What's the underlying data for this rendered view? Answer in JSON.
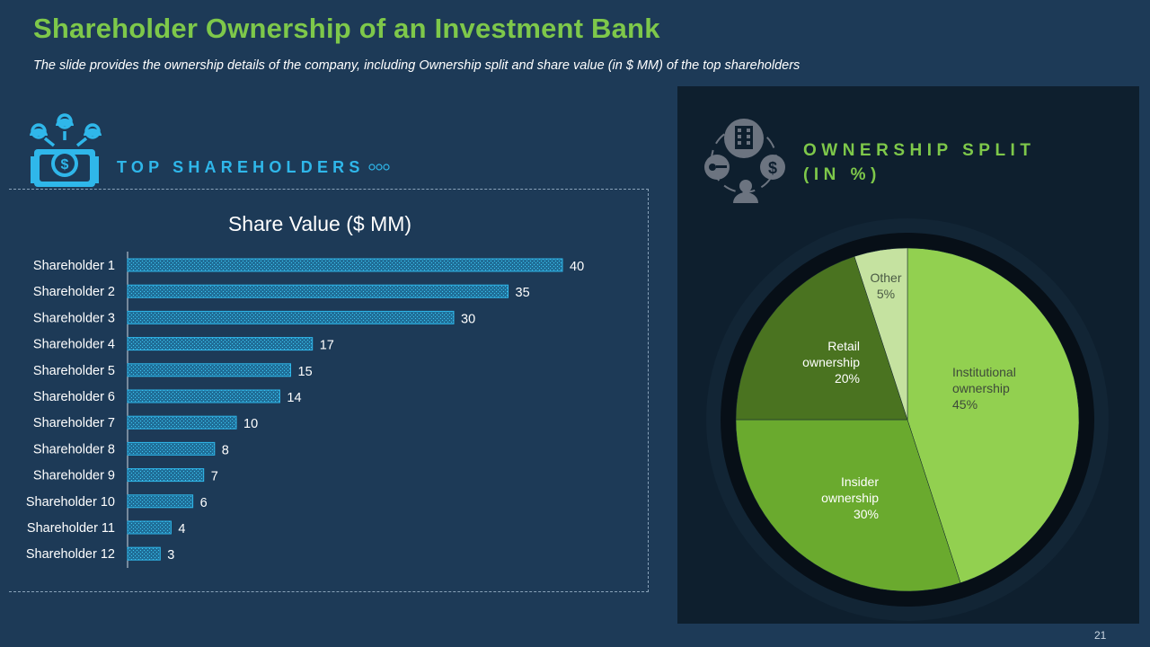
{
  "slide": {
    "title": "Shareholder Ownership of an Investment Bank",
    "subtitle": "The slide provides the ownership details of the company, including Ownership split and share value (in $ MM) of the top shareholders",
    "page_number": "21"
  },
  "left_section": {
    "heading": "TOP SHAREHOLDERS",
    "icon": "people-money-icon",
    "decoration": "three-dots-icon"
  },
  "right_section": {
    "heading_line1": "OWNERSHIP SPLIT",
    "heading_line2": "(IN %)",
    "icon": "building-network-icon"
  },
  "colors": {
    "background": "#1d3a57",
    "title_green": "#7ec84a",
    "accent_blue": "#2fb7ea",
    "panel_dark": "#0e1f2e"
  },
  "chart_data": [
    {
      "type": "bar",
      "orientation": "horizontal",
      "title": "Share Value ($ MM)",
      "categories": [
        "Shareholder 1",
        "Shareholder 2",
        "Shareholder 3",
        "Shareholder 4",
        "Shareholder 5",
        "Shareholder 6",
        "Shareholder 7",
        "Shareholder 8",
        "Shareholder 9",
        "Shareholder 10",
        "Shareholder 11",
        "Shareholder 12"
      ],
      "values": [
        40,
        35,
        30,
        17,
        15,
        14,
        10,
        8,
        7,
        6,
        4,
        3
      ],
      "data_labels": [
        "40",
        "35",
        "30",
        "17",
        "15",
        "14",
        "10",
        "8",
        "7",
        "6",
        "4",
        "3"
      ],
      "xlim": [
        0,
        40
      ],
      "grid": false,
      "bar_color": "#2fb7ea"
    },
    {
      "type": "pie",
      "title": "",
      "slices": [
        {
          "label_lines": [
            "Institutional",
            "ownership",
            "45%"
          ],
          "value": 45,
          "color": "#92d050"
        },
        {
          "label_lines": [
            "Insider",
            "ownership",
            "30%"
          ],
          "value": 30,
          "color": "#6aaa2e"
        },
        {
          "label_lines": [
            "Retail",
            "ownership",
            "20%"
          ],
          "value": 20,
          "color": "#4a7320"
        },
        {
          "label_lines": [
            "Other",
            "5%"
          ],
          "value": 5,
          "color": "#c5e2a0"
        }
      ]
    }
  ]
}
